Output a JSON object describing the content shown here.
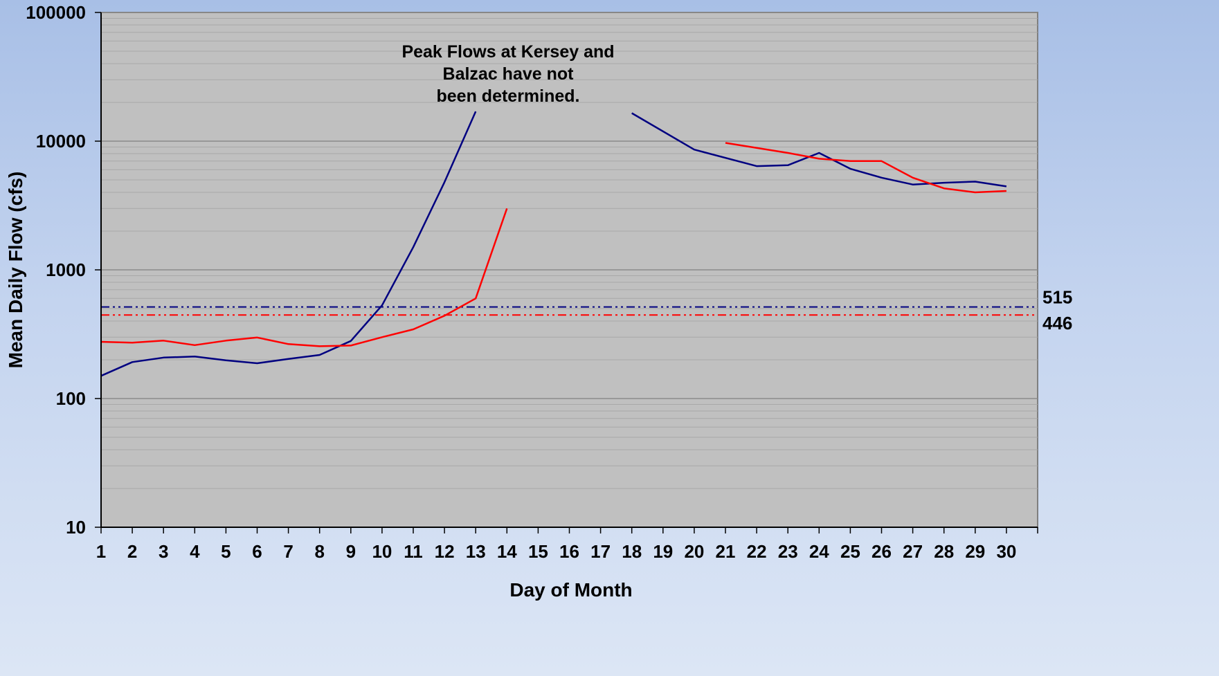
{
  "chart_data": {
    "type": "line",
    "xlabel": "Day of Month",
    "ylabel": "Mean Daily Flow (cfs)",
    "yscale": "log",
    "ylim": [
      10,
      100000
    ],
    "xlim": [
      1,
      31
    ],
    "x_ticks": [
      1,
      2,
      3,
      4,
      5,
      6,
      7,
      8,
      9,
      10,
      11,
      12,
      13,
      14,
      15,
      16,
      17,
      18,
      19,
      20,
      21,
      22,
      23,
      24,
      25,
      26,
      27,
      28,
      29,
      30
    ],
    "y_ticks": [
      10,
      100,
      1000,
      10000,
      100000
    ],
    "y_tick_labels": [
      "10",
      "100",
      "1000",
      "10000",
      "100000"
    ],
    "grid": true,
    "legend": "none",
    "annotation": "Peak Flows at Kersey and Balzac have not been determined.",
    "series": [
      {
        "color": "#000080",
        "points": [
          [
            1,
            150
          ],
          [
            2,
            192
          ],
          [
            3,
            208
          ],
          [
            4,
            212
          ],
          [
            5,
            198
          ],
          [
            6,
            188
          ],
          [
            7,
            203
          ],
          [
            8,
            218
          ],
          [
            9,
            280
          ],
          [
            10,
            530
          ],
          [
            11,
            1500
          ],
          [
            12,
            4800
          ],
          [
            13,
            17000
          ],
          [
            18,
            16500
          ],
          [
            20,
            8600
          ],
          [
            22,
            6400
          ],
          [
            23,
            6500
          ],
          [
            24,
            8100
          ],
          [
            25,
            6100
          ],
          [
            26,
            5200
          ],
          [
            27,
            4600
          ],
          [
            28,
            4750
          ],
          [
            29,
            4850
          ],
          [
            30,
            4450
          ]
        ]
      },
      {
        "color": "#ff0000",
        "points": [
          [
            1,
            276
          ],
          [
            2,
            272
          ],
          [
            3,
            282
          ],
          [
            4,
            260
          ],
          [
            5,
            282
          ],
          [
            6,
            298
          ],
          [
            7,
            265
          ],
          [
            8,
            255
          ],
          [
            9,
            258
          ],
          [
            10,
            300
          ],
          [
            11,
            345
          ],
          [
            12,
            440
          ],
          [
            13,
            600
          ],
          [
            14,
            3000
          ],
          [
            21,
            9700
          ],
          [
            23,
            8100
          ],
          [
            24,
            7300
          ],
          [
            25,
            7000
          ],
          [
            26,
            7000
          ],
          [
            27,
            5200
          ],
          [
            28,
            4300
          ],
          [
            29,
            4000
          ],
          [
            30,
            4100
          ]
        ]
      }
    ],
    "reference_lines": [
      {
        "value": 515,
        "label": "515",
        "color": "#000080"
      },
      {
        "value": 446,
        "label": "446",
        "color": "#ff0000"
      }
    ]
  }
}
